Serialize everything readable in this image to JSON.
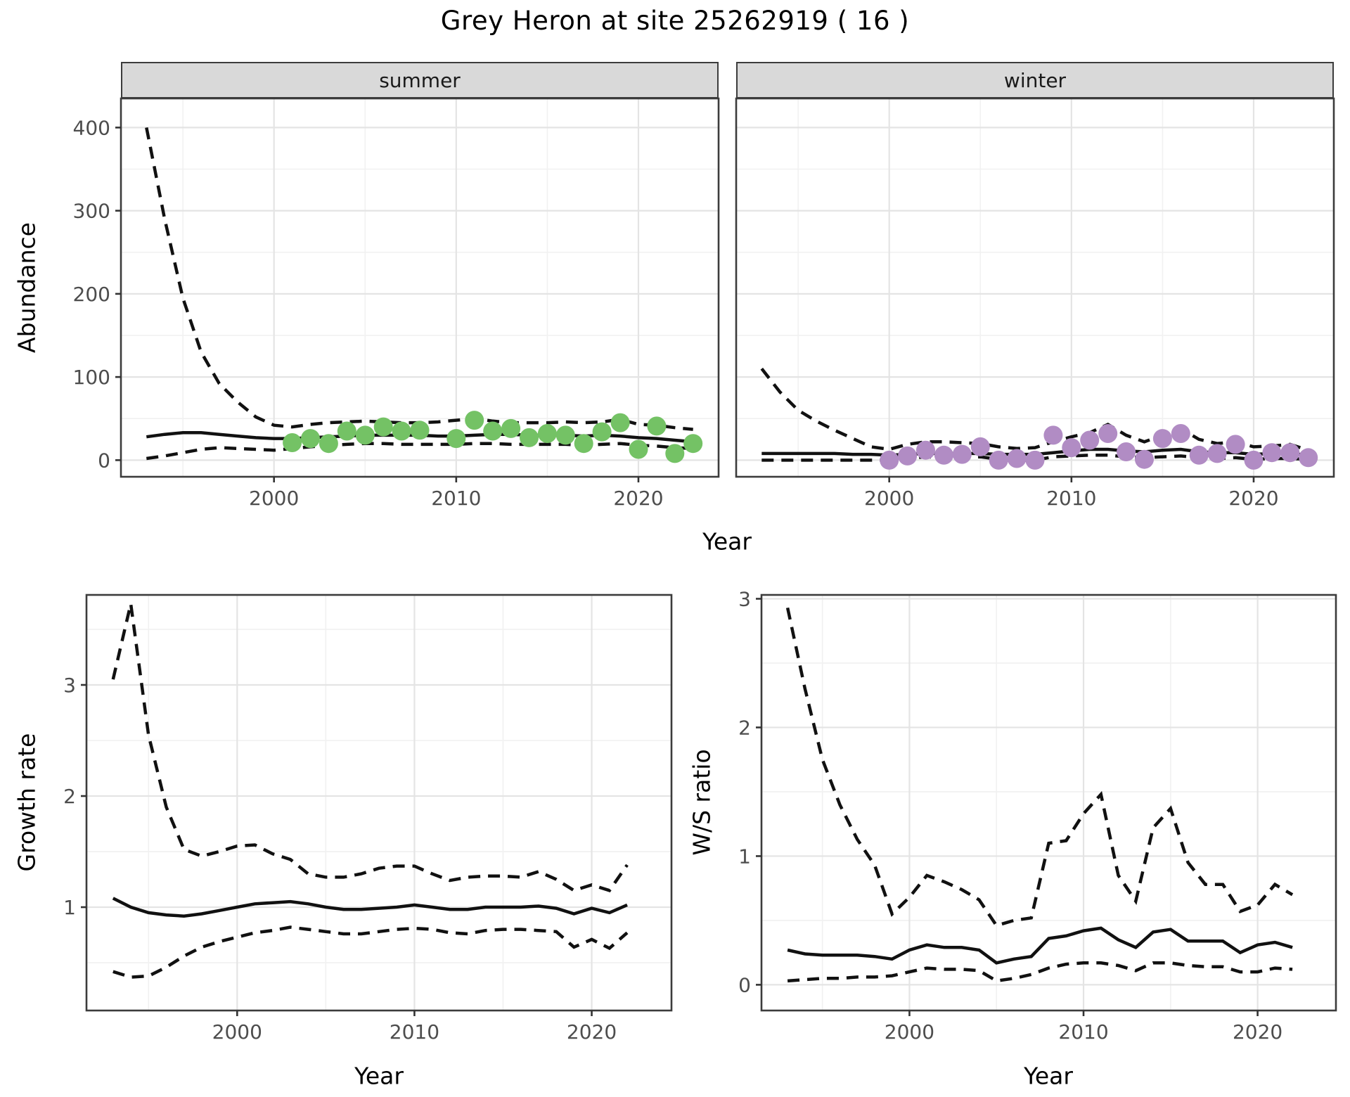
{
  "title": "Grey Heron at site 25262919 ( 16 )",
  "facets": {
    "summer": "summer",
    "winter": "winter"
  },
  "axes": {
    "x_label": "Year",
    "abundance_label": "Abundance",
    "growth_label": "Growth rate",
    "ws_label": "W/S ratio"
  },
  "colors": {
    "summer_point": "#74c265",
    "winter_point": "#b18cc4",
    "line": "#111111",
    "strip_bg": "#d9d9d9",
    "panel_border": "#3c3c3c",
    "grid_major": "#e4e4e4",
    "grid_minor": "#f1f1f1",
    "tick_text": "#4d4d4d"
  },
  "chart_data": [
    {
      "id": "abundance-summer",
      "type": "line",
      "facet": "summer",
      "title": "",
      "xlabel": "Year",
      "ylabel": "Abundance",
      "xlim": [
        1991.6,
        2024.4
      ],
      "ylim": [
        -20,
        435
      ],
      "x_ticks": [
        2000,
        2010,
        2020
      ],
      "x_minor": [
        1995,
        2005,
        2015
      ],
      "y_ticks": [
        0,
        100,
        200,
        300,
        400
      ],
      "y_minor": [
        50,
        150,
        250,
        350
      ],
      "grid": true,
      "legend": "none",
      "years": [
        1993,
        1994,
        1995,
        1996,
        1997,
        1998,
        1999,
        2000,
        2001,
        2002,
        2003,
        2004,
        2005,
        2006,
        2007,
        2008,
        2009,
        2010,
        2011,
        2012,
        2013,
        2014,
        2015,
        2016,
        2017,
        2018,
        2019,
        2020,
        2021,
        2022,
        2023
      ],
      "series": [
        {
          "name": "fit",
          "style": "solid",
          "values": [
            28,
            31,
            33,
            33,
            31,
            29,
            27,
            26,
            26,
            27,
            28,
            29,
            30,
            30,
            30,
            30,
            29,
            29,
            30,
            31,
            31,
            30,
            30,
            30,
            29,
            30,
            29,
            27,
            26,
            24,
            22
          ]
        },
        {
          "name": "upper_ci",
          "style": "dashed",
          "values": [
            400,
            290,
            195,
            130,
            92,
            70,
            52,
            42,
            40,
            43,
            45,
            46,
            47,
            46,
            45,
            45,
            46,
            48,
            50,
            47,
            45,
            45,
            45,
            46,
            45,
            46,
            49,
            43,
            42,
            39,
            37
          ]
        },
        {
          "name": "lower_ci",
          "style": "dashed",
          "values": [
            2,
            5,
            9,
            13,
            15,
            14,
            13,
            12,
            14,
            16,
            18,
            19,
            20,
            20,
            19,
            19,
            19,
            19,
            20,
            20,
            19,
            19,
            19,
            19,
            18,
            19,
            20,
            18,
            17,
            15,
            14
          ]
        }
      ],
      "points": {
        "name": "summer observations",
        "color": "#74c265",
        "data": [
          [
            2001,
            21
          ],
          [
            2002,
            26
          ],
          [
            2003,
            20
          ],
          [
            2004,
            35
          ],
          [
            2005,
            30
          ],
          [
            2006,
            40
          ],
          [
            2007,
            35
          ],
          [
            2008,
            36
          ],
          [
            2010,
            26
          ],
          [
            2011,
            48
          ],
          [
            2012,
            35
          ],
          [
            2013,
            38
          ],
          [
            2014,
            27
          ],
          [
            2015,
            32
          ],
          [
            2016,
            30
          ],
          [
            2017,
            20
          ],
          [
            2018,
            34
          ],
          [
            2019,
            45
          ],
          [
            2020,
            13
          ],
          [
            2021,
            41
          ],
          [
            2022,
            8
          ],
          [
            2023,
            20
          ]
        ]
      }
    },
    {
      "id": "abundance-winter",
      "type": "line",
      "facet": "winter",
      "title": "",
      "xlabel": "Year",
      "ylabel": "Abundance",
      "xlim": [
        1991.6,
        2024.4
      ],
      "ylim": [
        -20,
        435
      ],
      "x_ticks": [
        2000,
        2010,
        2020
      ],
      "x_minor": [
        1995,
        2005,
        2015
      ],
      "y_ticks": [
        0,
        100,
        200,
        300,
        400
      ],
      "y_minor": [
        50,
        150,
        250,
        350
      ],
      "grid": true,
      "legend": "none",
      "years": [
        1993,
        1994,
        1995,
        1996,
        1997,
        1998,
        1999,
        2000,
        2001,
        2002,
        2003,
        2004,
        2005,
        2006,
        2007,
        2008,
        2009,
        2010,
        2011,
        2012,
        2013,
        2014,
        2015,
        2016,
        2017,
        2018,
        2019,
        2020,
        2021,
        2022,
        2023
      ],
      "series": [
        {
          "name": "fit",
          "style": "solid",
          "values": [
            8,
            8,
            8,
            8,
            8,
            7,
            7,
            6,
            7,
            8,
            8,
            8,
            8,
            7,
            7,
            7,
            9,
            11,
            13,
            13,
            11,
            10,
            12,
            13,
            10,
            9,
            9,
            7,
            8,
            8,
            6
          ]
        },
        {
          "name": "upper_ci",
          "style": "dashed",
          "values": [
            110,
            82,
            60,
            47,
            36,
            26,
            16,
            13,
            19,
            22,
            22,
            21,
            20,
            16,
            14,
            15,
            22,
            28,
            33,
            43,
            30,
            22,
            30,
            38,
            25,
            20,
            22,
            16,
            17,
            19,
            12
          ]
        },
        {
          "name": "lower_ci",
          "style": "dashed",
          "values": [
            0,
            0,
            0,
            0,
            0,
            0,
            0,
            0,
            2,
            4,
            3,
            3,
            4,
            1,
            0,
            0,
            4,
            5,
            6,
            6,
            4,
            3,
            4,
            5,
            3,
            2,
            3,
            1,
            2,
            2,
            1
          ]
        }
      ],
      "points": {
        "name": "winter observations",
        "color": "#b18cc4",
        "data": [
          [
            2000,
            0
          ],
          [
            2001,
            5
          ],
          [
            2002,
            12
          ],
          [
            2003,
            6
          ],
          [
            2004,
            7
          ],
          [
            2005,
            16
          ],
          [
            2006,
            0
          ],
          [
            2007,
            2
          ],
          [
            2008,
            0
          ],
          [
            2009,
            30
          ],
          [
            2010,
            15
          ],
          [
            2011,
            24
          ],
          [
            2012,
            32
          ],
          [
            2013,
            10
          ],
          [
            2014,
            1
          ],
          [
            2015,
            26
          ],
          [
            2016,
            32
          ],
          [
            2017,
            6
          ],
          [
            2018,
            8
          ],
          [
            2019,
            19
          ],
          [
            2020,
            0
          ],
          [
            2021,
            9
          ],
          [
            2022,
            9
          ],
          [
            2023,
            3
          ]
        ]
      }
    },
    {
      "id": "growth-rate",
      "type": "line",
      "facet": "",
      "title": "",
      "xlabel": "Year",
      "ylabel": "Growth rate",
      "xlim": [
        1991.5,
        2024.5
      ],
      "ylim": [
        0.07,
        3.81
      ],
      "x_ticks": [
        2000,
        2010,
        2020
      ],
      "x_minor": [
        1995,
        2005,
        2015
      ],
      "y_ticks": [
        1,
        2,
        3
      ],
      "y_minor": [
        0.5,
        1.5,
        2.5,
        3.5
      ],
      "grid": true,
      "legend": "none",
      "years": [
        1993,
        1994,
        1995,
        1996,
        1997,
        1998,
        1999,
        2000,
        2001,
        2002,
        2003,
        2004,
        2005,
        2006,
        2007,
        2008,
        2009,
        2010,
        2011,
        2012,
        2013,
        2014,
        2015,
        2016,
        2017,
        2018,
        2019,
        2020,
        2021,
        2022
      ],
      "series": [
        {
          "name": "fit",
          "style": "solid",
          "values": [
            1.08,
            1.0,
            0.95,
            0.93,
            0.92,
            0.94,
            0.97,
            1.0,
            1.03,
            1.04,
            1.05,
            1.03,
            1.0,
            0.98,
            0.98,
            0.99,
            1.0,
            1.02,
            1.0,
            0.98,
            0.98,
            1.0,
            1.0,
            1.0,
            1.01,
            0.99,
            0.94,
            0.99,
            0.95,
            1.02
          ]
        },
        {
          "name": "upper_ci",
          "style": "dashed",
          "values": [
            3.05,
            3.73,
            2.55,
            1.9,
            1.52,
            1.46,
            1.5,
            1.55,
            1.56,
            1.48,
            1.43,
            1.3,
            1.27,
            1.27,
            1.3,
            1.35,
            1.37,
            1.37,
            1.3,
            1.24,
            1.27,
            1.28,
            1.28,
            1.27,
            1.32,
            1.25,
            1.15,
            1.2,
            1.15,
            1.38
          ]
        },
        {
          "name": "lower_ci",
          "style": "dashed",
          "values": [
            0.42,
            0.37,
            0.38,
            0.46,
            0.56,
            0.64,
            0.69,
            0.73,
            0.77,
            0.79,
            0.82,
            0.8,
            0.78,
            0.76,
            0.76,
            0.78,
            0.8,
            0.81,
            0.8,
            0.77,
            0.76,
            0.79,
            0.8,
            0.8,
            0.79,
            0.78,
            0.64,
            0.71,
            0.63,
            0.77
          ]
        }
      ],
      "points": null
    },
    {
      "id": "ws-ratio",
      "type": "line",
      "facet": "",
      "title": "",
      "xlabel": "Year",
      "ylabel": "W/S ratio",
      "xlim": [
        1991.5,
        2024.5
      ],
      "ylim": [
        -0.2,
        3.03
      ],
      "x_ticks": [
        2000,
        2010,
        2020
      ],
      "x_minor": [
        1995,
        2005,
        2015
      ],
      "y_ticks": [
        0,
        1,
        2,
        3
      ],
      "y_minor": [
        0.5,
        1.5,
        2.5
      ],
      "grid": true,
      "legend": "none",
      "years": [
        1993,
        1994,
        1995,
        1996,
        1997,
        1998,
        1999,
        2000,
        2001,
        2002,
        2003,
        2004,
        2005,
        2006,
        2007,
        2008,
        2009,
        2010,
        2011,
        2012,
        2013,
        2014,
        2015,
        2016,
        2017,
        2018,
        2019,
        2020,
        2021,
        2022
      ],
      "series": [
        {
          "name": "fit",
          "style": "solid",
          "values": [
            0.27,
            0.24,
            0.23,
            0.23,
            0.23,
            0.22,
            0.2,
            0.27,
            0.31,
            0.29,
            0.29,
            0.27,
            0.17,
            0.2,
            0.22,
            0.36,
            0.38,
            0.42,
            0.44,
            0.35,
            0.29,
            0.41,
            0.43,
            0.34,
            0.34,
            0.34,
            0.25,
            0.31,
            0.33,
            0.29
          ]
        },
        {
          "name": "upper_ci",
          "style": "dashed",
          "values": [
            2.93,
            2.3,
            1.75,
            1.4,
            1.13,
            0.93,
            0.55,
            0.68,
            0.85,
            0.8,
            0.74,
            0.66,
            0.46,
            0.5,
            0.52,
            1.1,
            1.12,
            1.33,
            1.48,
            0.85,
            0.65,
            1.22,
            1.37,
            0.95,
            0.78,
            0.78,
            0.57,
            0.62,
            0.78,
            0.7
          ]
        },
        {
          "name": "lower_ci",
          "style": "dashed",
          "values": [
            0.03,
            0.04,
            0.05,
            0.05,
            0.06,
            0.06,
            0.07,
            0.1,
            0.13,
            0.12,
            0.12,
            0.11,
            0.03,
            0.05,
            0.08,
            0.13,
            0.16,
            0.17,
            0.17,
            0.15,
            0.11,
            0.17,
            0.17,
            0.15,
            0.14,
            0.14,
            0.1,
            0.1,
            0.13,
            0.12
          ]
        }
      ],
      "points": null
    }
  ]
}
